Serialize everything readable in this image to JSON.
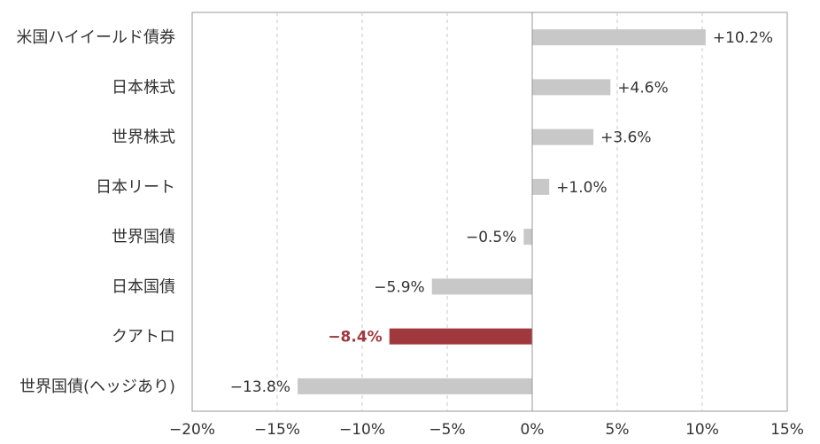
{
  "chart_data": {
    "type": "bar",
    "orientation": "horizontal",
    "categories": [
      "米国ハイイールド債券",
      "日本株式",
      "世界株式",
      "日本リート",
      "世界国債",
      "日本国債",
      "クアトロ",
      "世界国債(ヘッジあり)"
    ],
    "values": [
      10.2,
      4.6,
      3.6,
      1.0,
      -0.5,
      -5.9,
      -8.4,
      -13.8
    ],
    "value_labels": [
      "+10.2%",
      "+4.6%",
      "+3.6%",
      "+1.0%",
      "−0.5%",
      "−5.9%",
      "−8.4%",
      "−13.8%"
    ],
    "highlight_index": 6,
    "colors": {
      "bar": "#c8c8c8",
      "highlight": "#a0393e",
      "grid": "#c8c8c8",
      "axis": "#999999"
    },
    "xlim": [
      -20,
      15
    ],
    "xticks": [
      -20,
      -15,
      -10,
      -5,
      0,
      5,
      10,
      15
    ],
    "xtick_labels": [
      "−20%",
      "−15%",
      "−10%",
      "−5%",
      "0%",
      "5%",
      "10%",
      "15%"
    ],
    "grid": true,
    "title": "",
    "xlabel": "",
    "ylabel": ""
  }
}
